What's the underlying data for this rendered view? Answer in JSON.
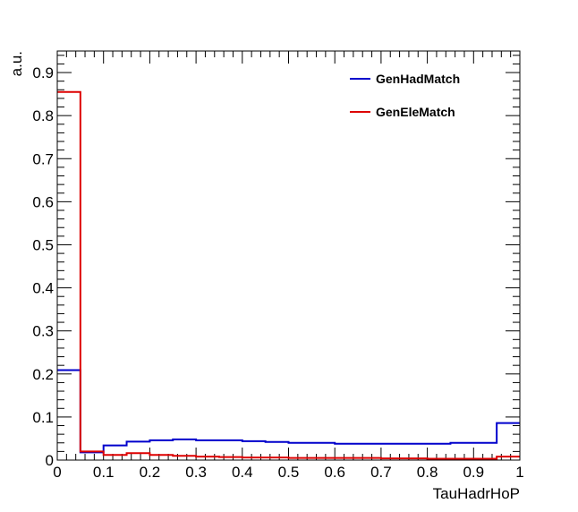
{
  "chart_data": {
    "type": "histogram",
    "title": "",
    "xlabel": "TauHadrHoP",
    "ylabel": "a.u.",
    "xlim": [
      0,
      1
    ],
    "ylim": [
      0,
      0.95
    ],
    "xticks": [
      "0",
      "0.1",
      "0.2",
      "0.3",
      "0.4",
      "0.5",
      "0.6",
      "0.7",
      "0.8",
      "0.9",
      "1"
    ],
    "yticks": [
      "0",
      "0.1",
      "0.2",
      "0.3",
      "0.4",
      "0.5",
      "0.6",
      "0.7",
      "0.8",
      "0.9"
    ],
    "bin_edges": [
      0,
      0.05,
      0.1,
      0.15,
      0.2,
      0.25,
      0.3,
      0.35,
      0.4,
      0.45,
      0.5,
      0.55,
      0.6,
      0.65,
      0.7,
      0.75,
      0.8,
      0.85,
      0.9,
      0.95,
      1.0
    ],
    "series": [
      {
        "name": "GenHadMatch",
        "color": "#0000cc",
        "values": [
          0.209,
          0.018,
          0.034,
          0.043,
          0.046,
          0.048,
          0.046,
          0.046,
          0.044,
          0.042,
          0.04,
          0.04,
          0.038,
          0.038,
          0.038,
          0.038,
          0.038,
          0.04,
          0.04,
          0.086
        ]
      },
      {
        "name": "GenEleMatch",
        "color": "#dd0000",
        "values": [
          0.855,
          0.02,
          0.012,
          0.016,
          0.012,
          0.01,
          0.008,
          0.007,
          0.006,
          0.006,
          0.005,
          0.005,
          0.005,
          0.005,
          0.004,
          0.004,
          0.003,
          0.003,
          0.003,
          0.008
        ]
      }
    ],
    "legend_position": "top-right",
    "grid": false
  }
}
